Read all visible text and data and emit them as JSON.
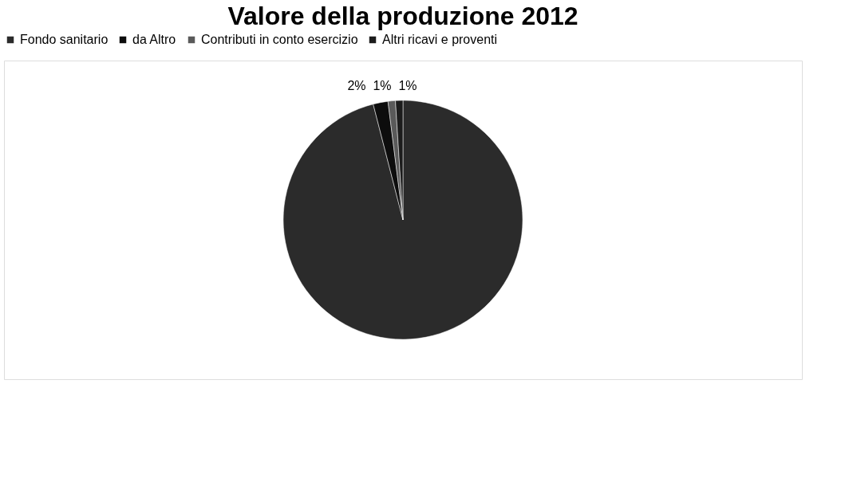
{
  "chart_data": {
    "type": "pie",
    "title": "Valore della produzione 2012",
    "categories": [
      "Fondo sanitario",
      "da Altro",
      "Contributi in conto esercizio",
      "Altri ricavi e proventi"
    ],
    "values": [
      96,
      2,
      1,
      1
    ],
    "colors": [
      "#2b2b2b",
      "#0d0d0d",
      "#5a5a5a",
      "#1c1c1c"
    ],
    "value_labels": [
      null,
      "2%",
      "1%",
      "1%"
    ],
    "legend": "top"
  }
}
